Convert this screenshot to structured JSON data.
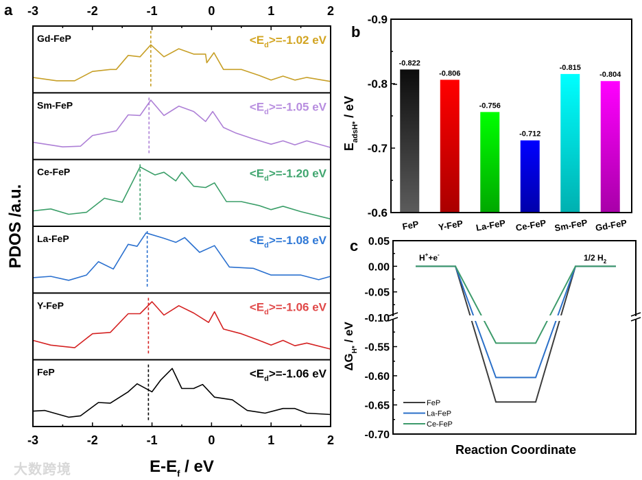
{
  "watermark": "大数跨境",
  "chart_data": [
    {
      "panel_label": "a",
      "type": "line",
      "title": "",
      "xlabel_main": "E-E",
      "xlabel_sub": "f",
      "xlabel_unit": " / eV",
      "ylabel": "PDOS /a.u.",
      "xlim": [
        -3,
        2
      ],
      "xticks": [
        "-3",
        "-2",
        "-1",
        "0",
        "1",
        "2"
      ],
      "ed_prefix": "<E",
      "ed_sub": "d",
      "series": [
        {
          "name": "Gd-FeP",
          "ed": -1.02,
          "ed_text": ">=-1.02 eV",
          "color": "#c79f26",
          "label_color": "#d2a421",
          "points": [
            [
              -3,
              0.23
            ],
            [
              -2.6,
              0.18
            ],
            [
              -2.3,
              0.18
            ],
            [
              -2,
              0.32
            ],
            [
              -1.7,
              0.35
            ],
            [
              -1.6,
              0.35
            ],
            [
              -1.4,
              0.56
            ],
            [
              -1.2,
              0.54
            ],
            [
              -1.02,
              0.72
            ],
            [
              -0.8,
              0.54
            ],
            [
              -0.55,
              0.66
            ],
            [
              -0.3,
              0.58
            ],
            [
              -0.1,
              0.58
            ],
            [
              -0.08,
              0.45
            ],
            [
              0.04,
              0.6
            ],
            [
              0.2,
              0.35
            ],
            [
              0.5,
              0.35
            ],
            [
              0.8,
              0.26
            ],
            [
              1,
              0.19
            ],
            [
              1.2,
              0.25
            ],
            [
              1.4,
              0.19
            ],
            [
              1.6,
              0.23
            ],
            [
              2,
              0.17
            ]
          ]
        },
        {
          "name": "Sm-FeP",
          "ed": -1.05,
          "ed_text": ">=-1.05 eV",
          "color": "#ad7fd6",
          "label_color": "#b78ddf",
          "points": [
            [
              -3,
              0.26
            ],
            [
              -2.5,
              0.19
            ],
            [
              -2.2,
              0.2
            ],
            [
              -2,
              0.36
            ],
            [
              -1.6,
              0.43
            ],
            [
              -1.4,
              0.67
            ],
            [
              -1.2,
              0.66
            ],
            [
              -1.02,
              0.89
            ],
            [
              -0.8,
              0.66
            ],
            [
              -0.55,
              0.8
            ],
            [
              -0.3,
              0.72
            ],
            [
              -0.1,
              0.57
            ],
            [
              0.02,
              0.72
            ],
            [
              0.2,
              0.48
            ],
            [
              0.4,
              0.4
            ],
            [
              0.7,
              0.31
            ],
            [
              1,
              0.23
            ],
            [
              1.2,
              0.28
            ],
            [
              1.4,
              0.22
            ],
            [
              1.6,
              0.28
            ],
            [
              2,
              0.18
            ]
          ]
        },
        {
          "name": "Ce-FeP",
          "ed": -1.2,
          "ed_text": ">=-1.20 eV",
          "color": "#3a9e68",
          "label_color": "#3fa56e",
          "points": [
            [
              -3,
              0.23
            ],
            [
              -2.7,
              0.26
            ],
            [
              -2.4,
              0.18
            ],
            [
              -2.1,
              0.21
            ],
            [
              -1.8,
              0.42
            ],
            [
              -1.5,
              0.36
            ],
            [
              -1.2,
              0.89
            ],
            [
              -0.95,
              0.77
            ],
            [
              -0.8,
              0.81
            ],
            [
              -0.6,
              0.68
            ],
            [
              -0.5,
              0.81
            ],
            [
              -0.3,
              0.6
            ],
            [
              -0.1,
              0.58
            ],
            [
              0.05,
              0.65
            ],
            [
              0.25,
              0.37
            ],
            [
              0.5,
              0.37
            ],
            [
              0.8,
              0.31
            ],
            [
              1,
              0.25
            ],
            [
              1.2,
              0.3
            ],
            [
              1.5,
              0.22
            ],
            [
              2,
              0.11
            ]
          ]
        },
        {
          "name": "La-FeP",
          "ed": -1.08,
          "ed_text": ">=-1.08 eV",
          "color": "#2a70cf",
          "label_color": "#2f78d6",
          "points": [
            [
              -3,
              0.23
            ],
            [
              -2.7,
              0.25
            ],
            [
              -2.4,
              0.19
            ],
            [
              -2.1,
              0.27
            ],
            [
              -1.9,
              0.47
            ],
            [
              -1.65,
              0.36
            ],
            [
              -1.4,
              0.73
            ],
            [
              -1.25,
              0.7
            ],
            [
              -1.1,
              0.9
            ],
            [
              -0.8,
              0.82
            ],
            [
              -0.6,
              0.76
            ],
            [
              -0.45,
              0.83
            ],
            [
              -0.2,
              0.61
            ],
            [
              0.05,
              0.71
            ],
            [
              0.3,
              0.39
            ],
            [
              0.7,
              0.37
            ],
            [
              1,
              0.27
            ],
            [
              1.5,
              0.27
            ],
            [
              1.8,
              0.2
            ],
            [
              2,
              0.25
            ]
          ]
        },
        {
          "name": "Y-FeP",
          "ed": -1.06,
          "ed_text": ">=-1.06 eV",
          "color": "#d42020",
          "label_color": "#e04848",
          "points": [
            [
              -3,
              0.29
            ],
            [
              -2.7,
              0.22
            ],
            [
              -2.3,
              0.18
            ],
            [
              -2,
              0.39
            ],
            [
              -1.7,
              0.41
            ],
            [
              -1.4,
              0.69
            ],
            [
              -1.2,
              0.69
            ],
            [
              -1.0,
              0.87
            ],
            [
              -0.8,
              0.67
            ],
            [
              -0.55,
              0.81
            ],
            [
              -0.3,
              0.7
            ],
            [
              -0.05,
              0.56
            ],
            [
              0.05,
              0.72
            ],
            [
              0.2,
              0.46
            ],
            [
              0.5,
              0.39
            ],
            [
              0.8,
              0.29
            ],
            [
              1,
              0.22
            ],
            [
              1.2,
              0.29
            ],
            [
              1.4,
              0.21
            ],
            [
              1.6,
              0.25
            ],
            [
              2,
              0.16
            ]
          ]
        },
        {
          "name": "FeP",
          "ed": -1.06,
          "ed_text": ">=-1.06 eV",
          "color": "#000000",
          "label_color": "#000000",
          "points": [
            [
              -3,
              0.23
            ],
            [
              -2.8,
              0.24
            ],
            [
              -2.4,
              0.14
            ],
            [
              -2.2,
              0.16
            ],
            [
              -1.9,
              0.36
            ],
            [
              -1.7,
              0.35
            ],
            [
              -1.4,
              0.52
            ],
            [
              -1.25,
              0.64
            ],
            [
              -1.0,
              0.52
            ],
            [
              -0.85,
              0.7
            ],
            [
              -0.66,
              0.87
            ],
            [
              -0.5,
              0.57
            ],
            [
              -0.3,
              0.57
            ],
            [
              -0.15,
              0.63
            ],
            [
              0.05,
              0.44
            ],
            [
              0.35,
              0.4
            ],
            [
              0.6,
              0.24
            ],
            [
              0.9,
              0.2
            ],
            [
              1.2,
              0.27
            ],
            [
              1.4,
              0.27
            ],
            [
              1.6,
              0.2
            ],
            [
              2,
              0.18
            ]
          ]
        }
      ]
    },
    {
      "panel_label": "b",
      "type": "bar",
      "ylabel_main": "E",
      "ylabel_sub": "adsH*",
      "ylabel_unit": " / eV",
      "ylim": [
        -0.6,
        -0.9
      ],
      "yticks": [
        "-0.9",
        "-0.8",
        "-0.7",
        "-0.6"
      ],
      "categories": [
        "FeP",
        "Y-FeP",
        "La-FeP",
        "Ce-FeP",
        "Sm-FeP",
        "Gd-FeP"
      ],
      "values": [
        -0.822,
        -0.806,
        -0.756,
        -0.712,
        -0.815,
        -0.804
      ],
      "value_labels": [
        "-0.822",
        "-0.806",
        "-0.756",
        "-0.712",
        "-0.815",
        "-0.804"
      ],
      "colors_top": [
        "#0c0c0c",
        "#ff0000",
        "#00ff00",
        "#0000ff",
        "#00ffff",
        "#ff00ff"
      ],
      "colors_bottom": [
        "#5c5c5c",
        "#aa0000",
        "#00a800",
        "#0000aa",
        "#00b0b0",
        "#a800a8"
      ]
    },
    {
      "panel_label": "c",
      "type": "line",
      "xlabel": "Reaction Coordinate",
      "ylabel_main": "ΔG",
      "ylabel_sub": "H*",
      "ylabel_unit": " / eV",
      "ylim_upper": [
        -0.1,
        0.05
      ],
      "ylim_lower": [
        -0.7,
        -0.5
      ],
      "yticks": [
        "0.05",
        "0.00",
        "-0.05",
        "-0.10",
        "-0.55",
        "-0.60",
        "-0.65",
        "-0.70"
      ],
      "state_label_start_main": "H",
      "state_label_start_sup1": "+",
      "state_label_start_mid": "+e",
      "state_label_start_sup2": "-",
      "state_label_end_main": "1/2 H",
      "state_label_end_sub": "2",
      "series": [
        {
          "name": "FeP",
          "color": "#3c3c3c",
          "values": [
            0,
            -0.645,
            0
          ]
        },
        {
          "name": "La-FeP",
          "color": "#2a6fc8",
          "values": [
            0,
            -0.603,
            0
          ]
        },
        {
          "name": "Ce-FeP",
          "color": "#3c9a6a",
          "values": [
            0,
            -0.544,
            0
          ]
        }
      ],
      "legend": "bottom-left"
    }
  ]
}
